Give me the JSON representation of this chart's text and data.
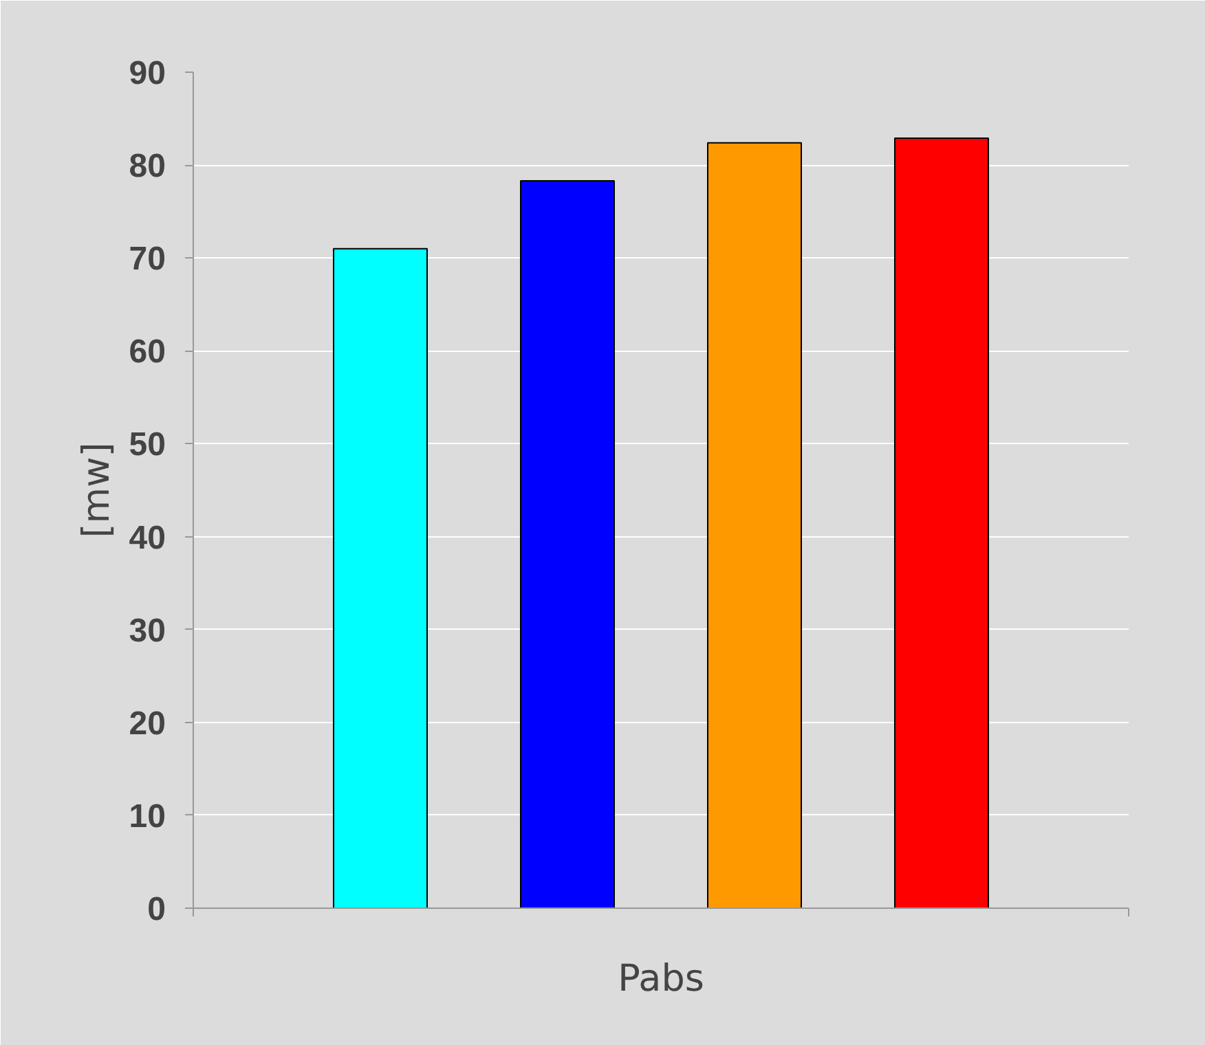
{
  "chart_data": {
    "type": "bar",
    "xlabel": "Pabs",
    "ylabel": "[mw]",
    "categories": [
      null,
      null,
      null,
      null
    ],
    "values": [
      71.0,
      78.3,
      82.4,
      82.9
    ],
    "colors": [
      "#00ffff",
      "#0000ff",
      "#ff9900",
      "#ff0000"
    ],
    "ylim": [
      0,
      90
    ],
    "yticks": [
      0,
      10,
      20,
      30,
      40,
      50,
      60,
      70,
      80,
      90
    ],
    "grid": "y",
    "legend": false
  }
}
